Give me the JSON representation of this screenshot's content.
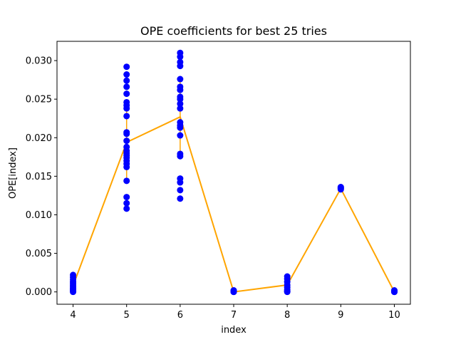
{
  "chart_data": {
    "type": "scatter",
    "title": "OPE coefficients for best 25 tries",
    "xlabel": "index",
    "ylabel": "OPE[index]",
    "xlim": [
      3.7,
      10.3
    ],
    "ylim": [
      -0.0016,
      0.0325
    ],
    "x_ticks": [
      "4",
      "5",
      "6",
      "7",
      "8",
      "9",
      "10"
    ],
    "y_ticks": [
      "0.000",
      "0.005",
      "0.010",
      "0.015",
      "0.020",
      "0.025",
      "0.030"
    ],
    "grid": false,
    "marker_color": "#0000ff",
    "line_color": "#ffa500",
    "scatter_series": [
      {
        "x": 4,
        "values": [
          0.0022,
          0.0019,
          0.0016,
          0.0013,
          0.0011,
          0.0009,
          0.0007,
          0.0005,
          0.0004,
          0.0003,
          0.0002,
          0.0001,
          0.0
        ]
      },
      {
        "x": 5,
        "values": [
          0.0292,
          0.0282,
          0.0274,
          0.0266,
          0.0257,
          0.0246,
          0.0242,
          0.0238,
          0.0228,
          0.0207,
          0.0205,
          0.0196,
          0.0188,
          0.0183,
          0.018,
          0.0177,
          0.0174,
          0.017,
          0.0166,
          0.0162,
          0.0144,
          0.0123,
          0.0115,
          0.0108
        ]
      },
      {
        "x": 6,
        "values": [
          0.031,
          0.0305,
          0.0298,
          0.0293,
          0.0276,
          0.0266,
          0.0262,
          0.0253,
          0.025,
          0.0244,
          0.0238,
          0.022,
          0.0216,
          0.0213,
          0.0203,
          0.0179,
          0.0176,
          0.0147,
          0.0142,
          0.0132,
          0.0121
        ]
      },
      {
        "x": 7,
        "values": [
          0.0002,
          0.0001,
          0.0,
          0.0
        ]
      },
      {
        "x": 8,
        "values": [
          0.002,
          0.0017,
          0.0013,
          0.0009,
          0.0006,
          0.0003,
          0.0001,
          0.0
        ]
      },
      {
        "x": 9,
        "values": [
          0.0136,
          0.0135,
          0.0134,
          0.0133
        ]
      },
      {
        "x": 10,
        "values": [
          0.0002,
          0.0001,
          0.0,
          0.0
        ]
      }
    ],
    "error_bars": [
      {
        "x": 4,
        "low": 0.0,
        "high": 0.0022
      },
      {
        "x": 5,
        "low": 0.0144,
        "high": 0.0242
      },
      {
        "x": 6,
        "low": 0.0177,
        "high": 0.0276
      },
      {
        "x": 7,
        "low": 0.0,
        "high": 0.0002
      },
      {
        "x": 8,
        "low": 0.0,
        "high": 0.002
      },
      {
        "x": 9,
        "low": 0.0133,
        "high": 0.0136
      },
      {
        "x": 10,
        "low": 0.0,
        "high": 0.0002
      }
    ],
    "mean_line": {
      "x": [
        4,
        5,
        6,
        7,
        8,
        9,
        10
      ],
      "values": [
        0.0008,
        0.0194,
        0.0227,
        0.0,
        0.0009,
        0.0134,
        0.0
      ]
    }
  }
}
